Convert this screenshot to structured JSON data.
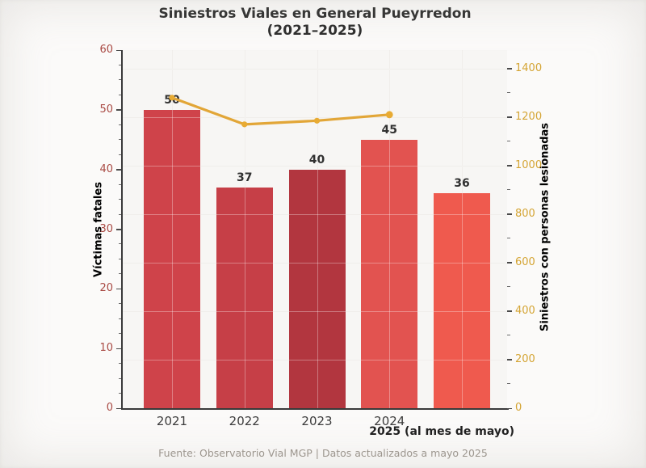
{
  "title": {
    "line1": "Siniestros Viales en General Pueyrredon",
    "line2": "(2021–2025)"
  },
  "annotation_2025": "2025 (al mes de mayo)",
  "footer": "Fuente: Observatorio Vial MGP | Datos actualizados a mayo 2025",
  "colors": {
    "title_text": "#2d2d2d",
    "left_axis": "#a94a44",
    "right_axis": "#d4a433",
    "line": "#e2a637",
    "marker": "#e8ab33",
    "bar_value_label": "#313131",
    "x_tick_label": "#3d3d3d",
    "footer_text": "#9b958d"
  },
  "chart_data": {
    "type": "bar",
    "title": "Siniestros Viales en General Pueyrredon (2021–2025)",
    "categories": [
      "2021",
      "2022",
      "2023",
      "2024",
      "2025"
    ],
    "x_tick_labels": [
      "2021",
      "2022",
      "2023",
      "2024",
      ""
    ],
    "x_note": "2025 (al mes de mayo)",
    "series": [
      {
        "name": "Víctimas fatales",
        "type": "bar",
        "axis": "left",
        "values": [
          50,
          37,
          40,
          45,
          36
        ],
        "bar_colors": [
          "#cf434a",
          "#c63f47",
          "#b2363f",
          "#e25350",
          "#ef5a4e"
        ]
      },
      {
        "name": "Siniestros con personas lesionadas",
        "type": "line",
        "axis": "right",
        "values": [
          1280,
          1170,
          1185,
          1210,
          null
        ],
        "color": "#e2a637",
        "marker": "circle"
      }
    ],
    "left_axis": {
      "label": "Víctimas fatales",
      "range": [
        0,
        60
      ],
      "ticks": [
        0,
        10,
        20,
        30,
        40,
        50,
        60
      ],
      "minor_step": 2.5,
      "color": "#a94a44"
    },
    "right_axis": {
      "label": "Siniestros con personas lesionadas",
      "range": [
        0,
        1476
      ],
      "ticks": [
        0,
        200,
        400,
        600,
        800,
        1000,
        1200,
        1400
      ],
      "minor_step": 100,
      "color": "#d4a433"
    },
    "grid": true,
    "legend": "none"
  }
}
